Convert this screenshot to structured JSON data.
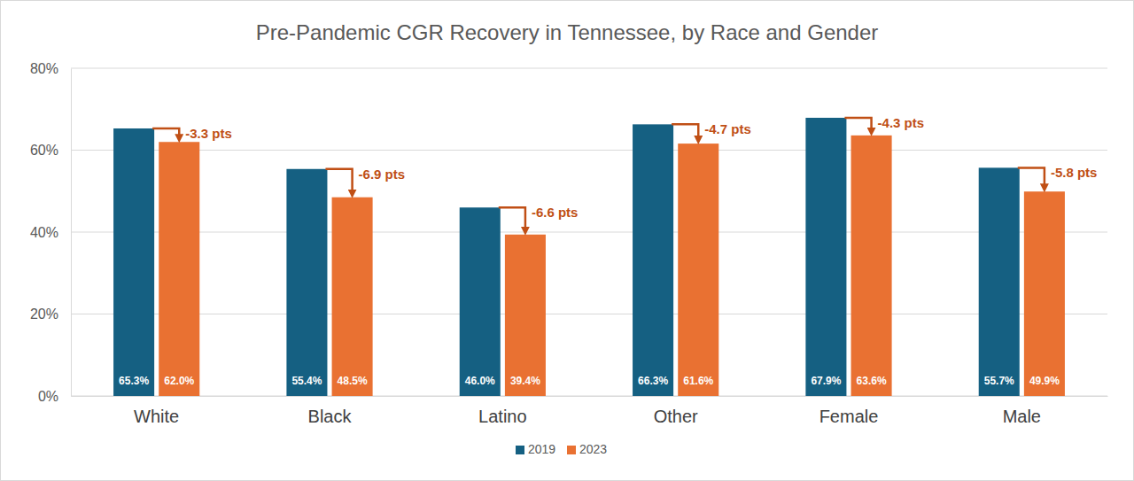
{
  "chart_data": {
    "type": "bar",
    "title": "Pre-Pandemic CGR Recovery in Tennessee, by Race and Gender",
    "categories": [
      "White",
      "Black",
      "Latino",
      "Other",
      "Female",
      "Male"
    ],
    "series": [
      {
        "name": "2019",
        "color": "#156082",
        "values": [
          65.3,
          55.4,
          46.0,
          66.3,
          67.9,
          55.7
        ],
        "value_labels": [
          "65.3%",
          "55.4%",
          "46.0%",
          "66.3%",
          "67.9%",
          "55.7%"
        ]
      },
      {
        "name": "2023",
        "color": "#e97132",
        "values": [
          62.0,
          48.5,
          39.4,
          61.6,
          63.6,
          49.9
        ],
        "value_labels": [
          "62.0%",
          "48.5%",
          "39.4%",
          "61.6%",
          "63.6%",
          "49.9%"
        ]
      }
    ],
    "annotations": [
      "-3.3 pts",
      "-6.9 pts",
      "-6.6 pts",
      "-4.7 pts",
      "-4.3 pts",
      "-5.8 pts"
    ],
    "ylim": [
      0,
      80
    ],
    "yticks": [
      {
        "value": 0,
        "label": "0%"
      },
      {
        "value": 20,
        "label": "20%"
      },
      {
        "value": 40,
        "label": "40%"
      },
      {
        "value": 60,
        "label": "60%"
      },
      {
        "value": 80,
        "label": "80%"
      }
    ],
    "grid": true,
    "data_labels": true,
    "legend": "bottom"
  }
}
